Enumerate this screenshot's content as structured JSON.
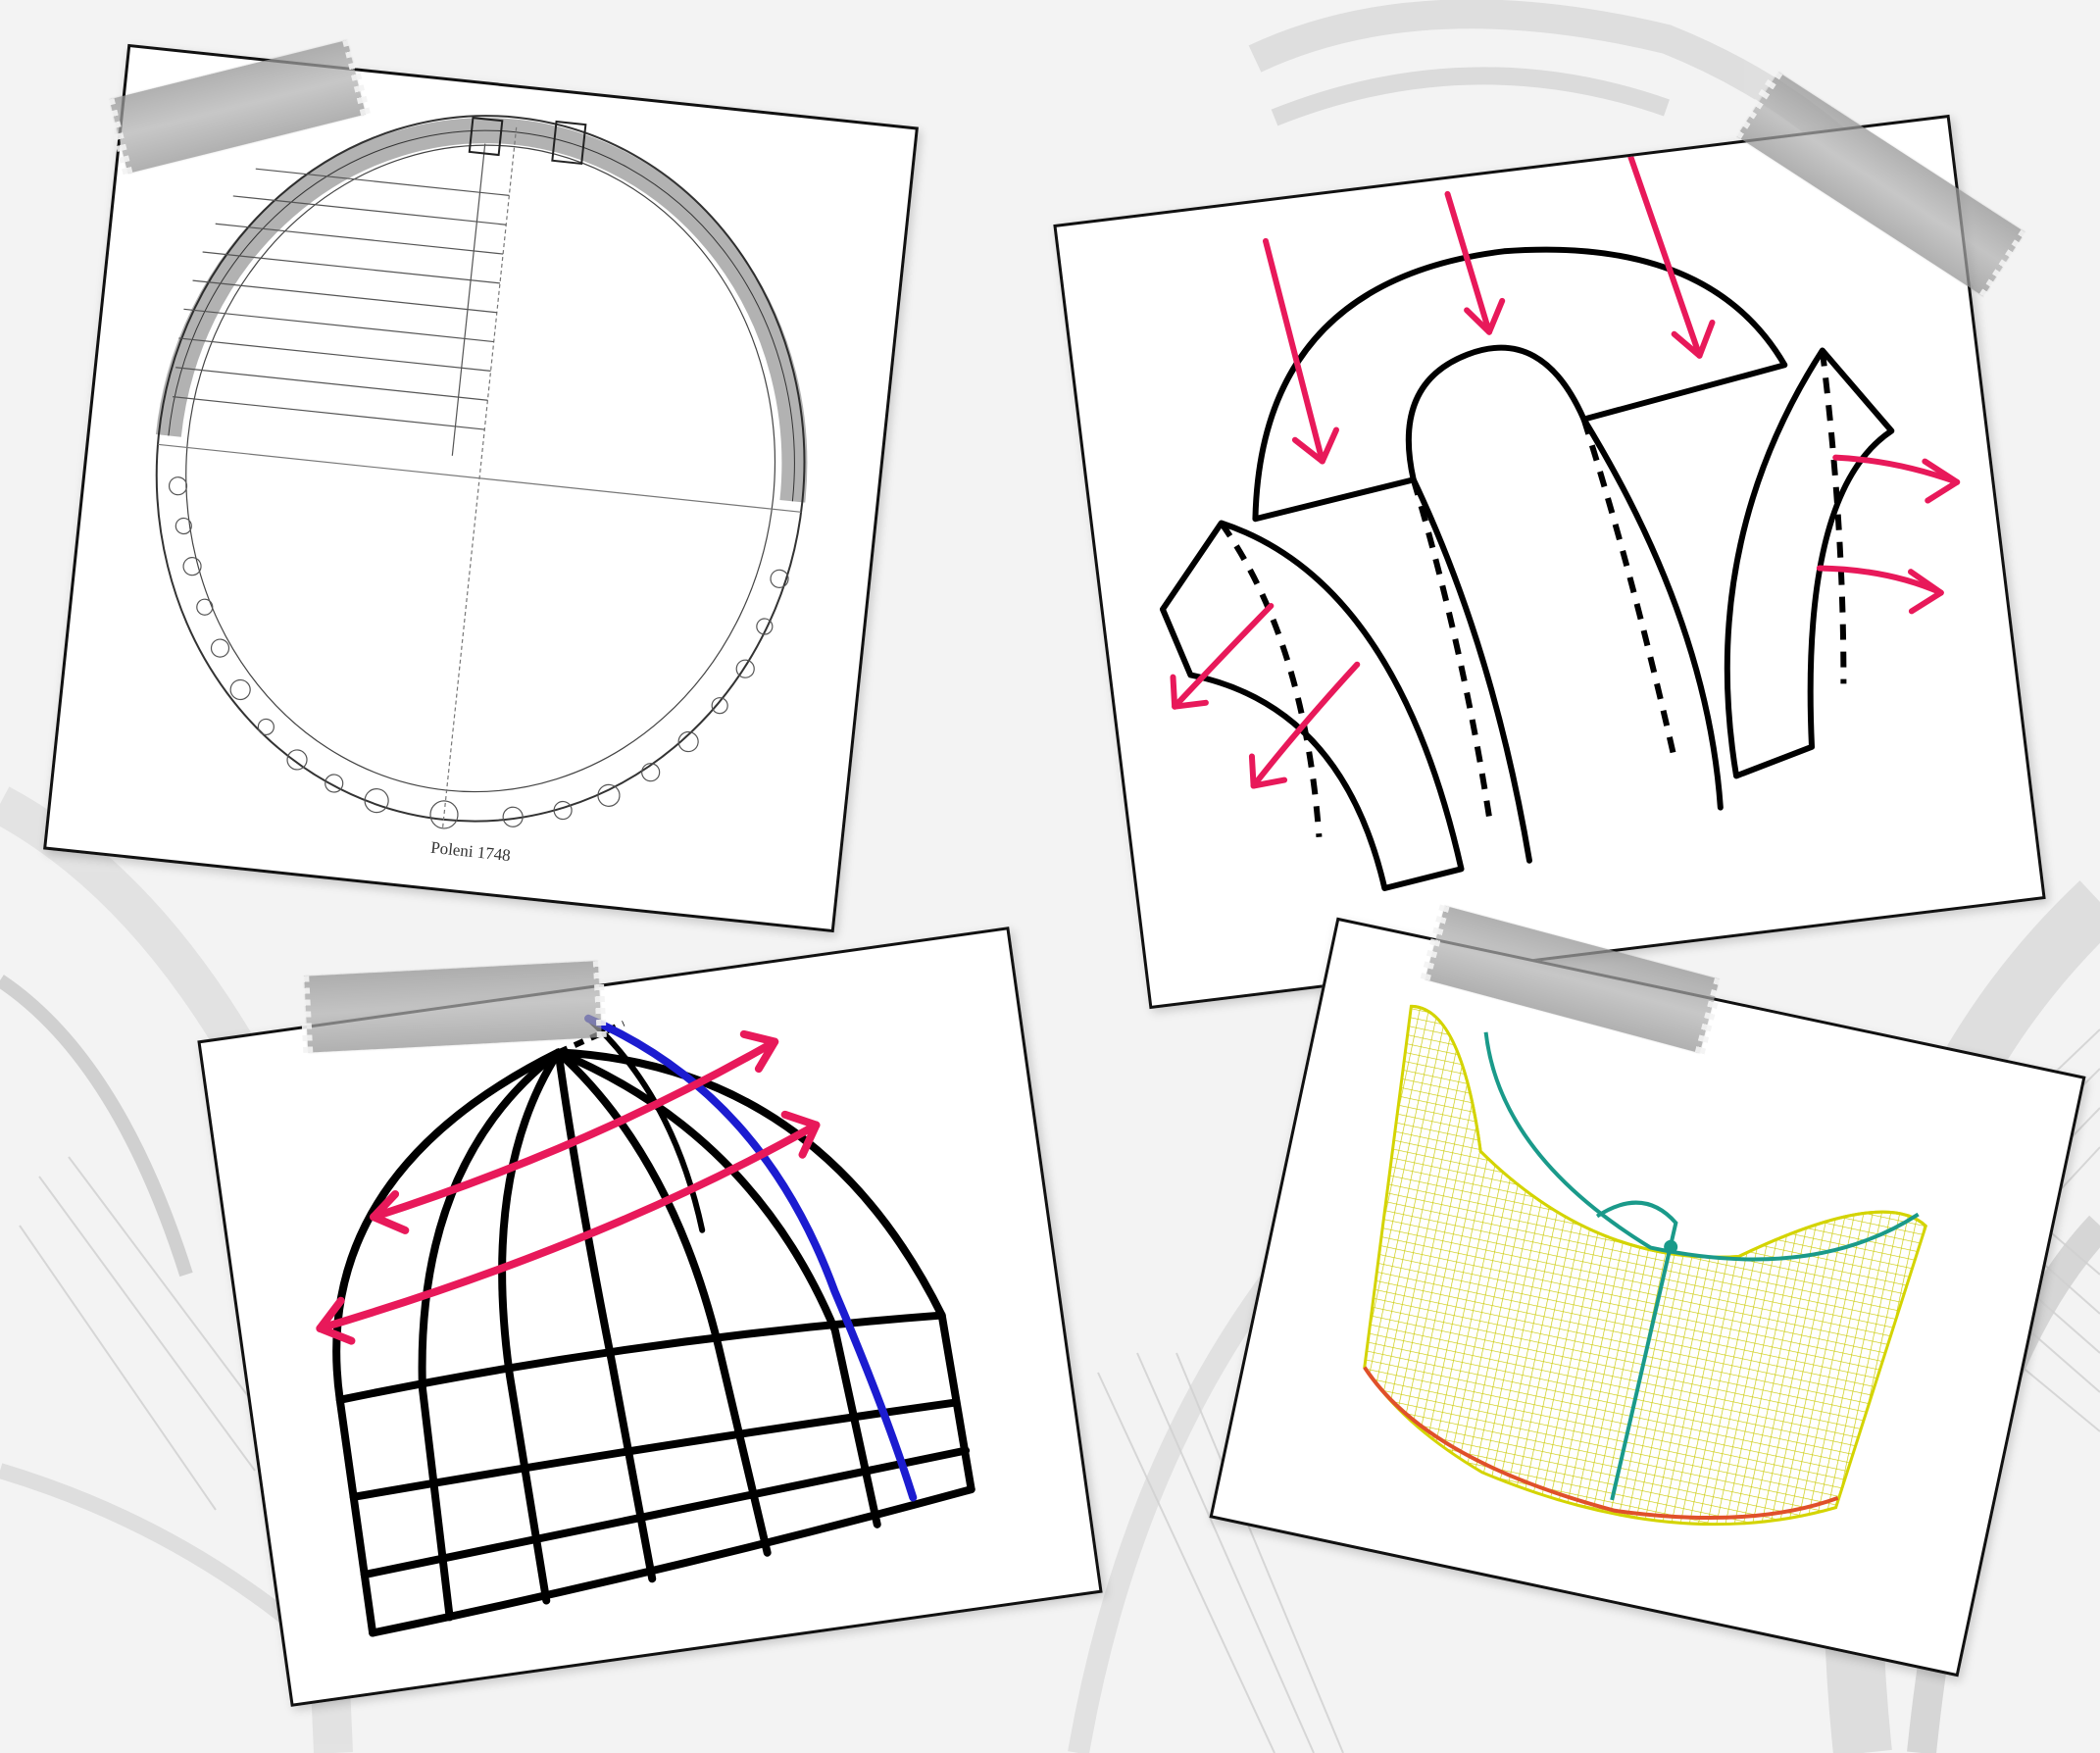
{
  "cards": {
    "poleni": {
      "caption": "Poleni 1748"
    }
  },
  "colors": {
    "background": "#f3f3f3",
    "ink": "#111111",
    "arrow_red": "#e8195a",
    "meridian_blue": "#1c1cd0",
    "surface_yellow": "#d4d400",
    "curve_teal": "#1a9a8a",
    "curve_orange": "#e0502a"
  },
  "icons": [
    "red-force-arrow",
    "double-headed-hoop-arrow",
    "tape-strip"
  ]
}
